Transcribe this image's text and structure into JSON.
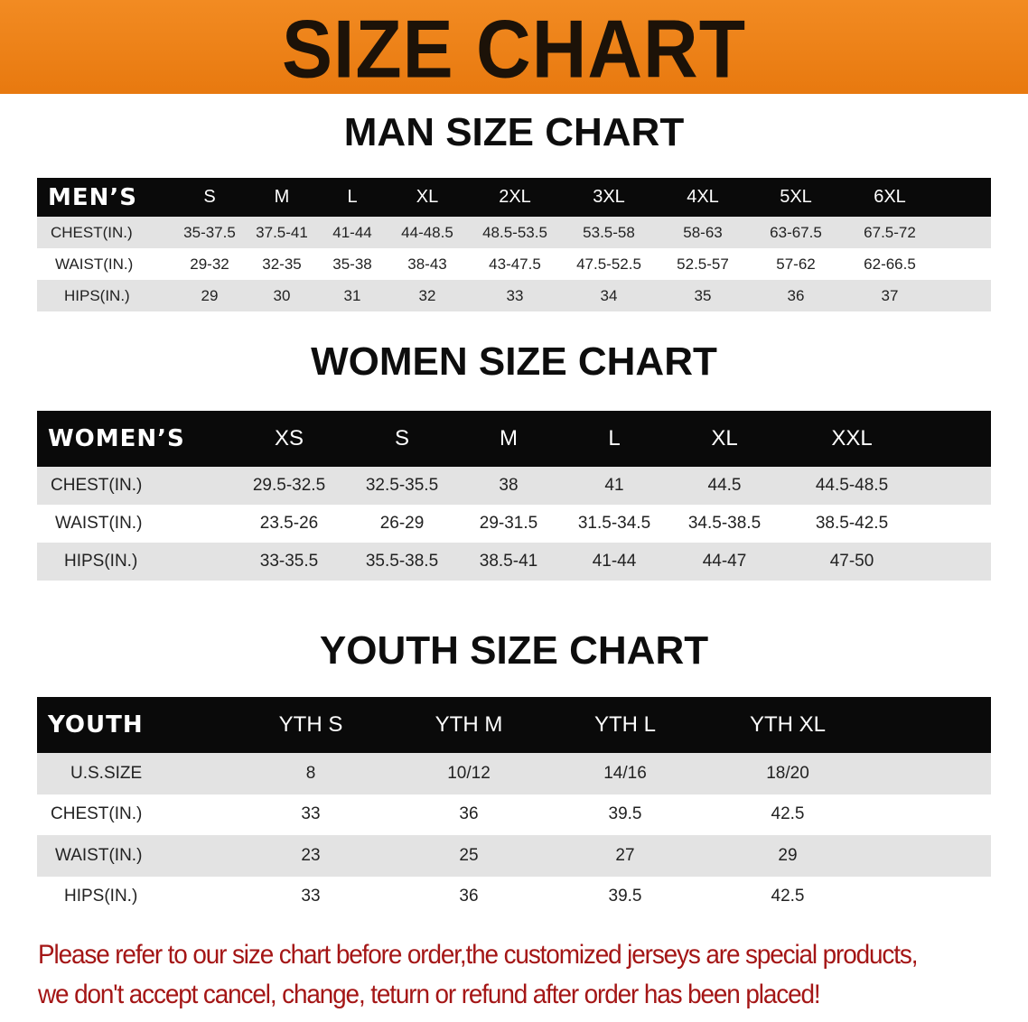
{
  "banner": {
    "title": "SIZE CHART",
    "color": "#ee8419"
  },
  "men": {
    "title": "MAN SIZE CHART",
    "header_label": "MEN’S",
    "sizes": [
      "S",
      "M",
      "L",
      "XL",
      "2XL",
      "3XL",
      "4XL",
      "5XL",
      "6XL"
    ],
    "rows": [
      {
        "label": "CHEST(IN.)",
        "values": [
          "35-37.5",
          "37.5-41",
          "41-44",
          "44-48.5",
          "48.5-53.5",
          "53.5-58",
          "58-63",
          "63-67.5",
          "67.5-72"
        ]
      },
      {
        "label": "WAIST(IN.)",
        "values": [
          "29-32",
          "32-35",
          "35-38",
          "38-43",
          "43-47.5",
          "47.5-52.5",
          "52.5-57",
          "57-62",
          "62-66.5"
        ]
      },
      {
        "label": "HIPS(IN.)",
        "values": [
          "29",
          "30",
          "31",
          "32",
          "33",
          "34",
          "35",
          "36",
          "37"
        ]
      }
    ]
  },
  "women": {
    "title": "WOMEN SIZE CHART",
    "header_label": "WOMEN’S",
    "sizes": [
      "XS",
      "S",
      "M",
      "L",
      "XL",
      "XXL"
    ],
    "rows": [
      {
        "label": "CHEST(IN.)",
        "values": [
          "29.5-32.5",
          "32.5-35.5",
          "38",
          "41",
          "44.5",
          "44.5-48.5"
        ]
      },
      {
        "label": "WAIST(IN.)",
        "values": [
          "23.5-26",
          "26-29",
          "29-31.5",
          "31.5-34.5",
          "34.5-38.5",
          "38.5-42.5"
        ]
      },
      {
        "label": "HIPS(IN.)",
        "values": [
          "33-35.5",
          "35.5-38.5",
          "38.5-41",
          "41-44",
          "44-47",
          "47-50"
        ]
      }
    ]
  },
  "youth": {
    "title": "YOUTH SIZE CHART",
    "header_label": "YOUTH",
    "sizes": [
      "YTH S",
      "YTH M",
      "YTH L",
      "YTH XL"
    ],
    "rows": [
      {
        "label": "U.S.SIZE",
        "values": [
          "8",
          "10/12",
          "14/16",
          "18/20"
        ]
      },
      {
        "label": "CHEST(IN.)",
        "values": [
          "33",
          "36",
          "39.5",
          "42.5"
        ]
      },
      {
        "label": "WAIST(IN.)",
        "values": [
          "23",
          "25",
          "27",
          "29"
        ]
      },
      {
        "label": "HIPS(IN.)",
        "values": [
          "33",
          "36",
          "39.5",
          "42.5"
        ]
      }
    ]
  },
  "notice": {
    "line1": "Please refer to our size chart before order,the customized jerseys are special products,",
    "line2": "we don't accept cancel, change, teturn or refund after order has been placed!",
    "color": "#a41616"
  }
}
